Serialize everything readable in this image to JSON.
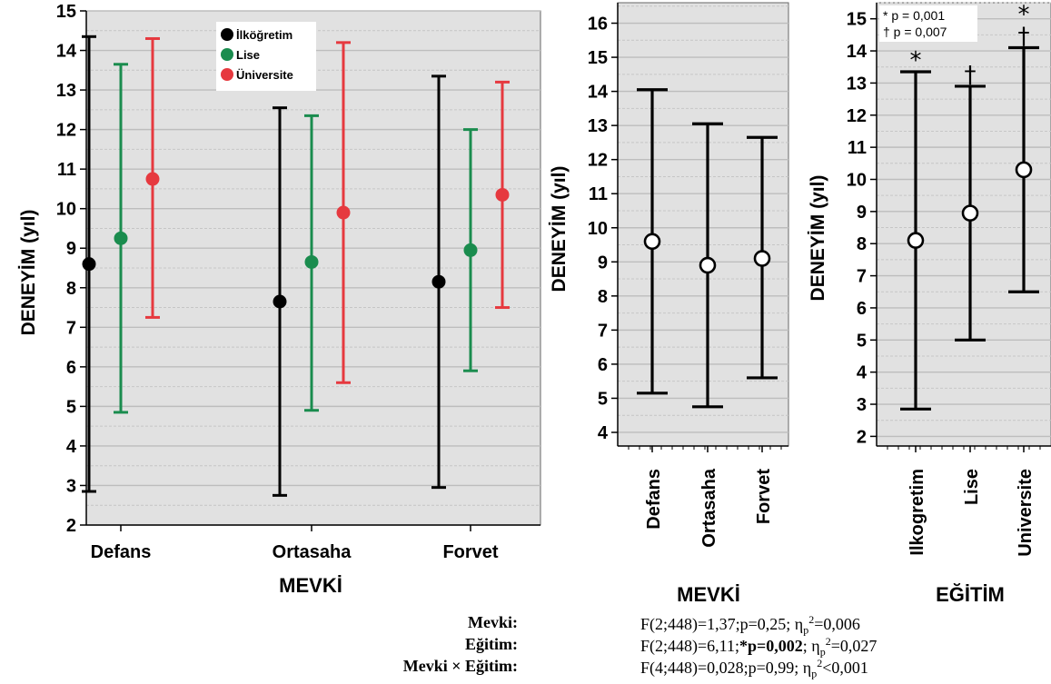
{
  "panels": [
    {
      "id": "mevki_egitim",
      "chart_data": {
        "type": "errorbar",
        "categories": [
          "Defans",
          "Ortasaha",
          "Forvet"
        ],
        "xlabel": "MEVKİ",
        "ylabel": "DENEYİM (yıl)",
        "ylim": [
          2,
          15
        ],
        "yticks": [
          2,
          3,
          4,
          5,
          6,
          7,
          8,
          9,
          10,
          11,
          12,
          13,
          14,
          15
        ],
        "legend_position": "top",
        "grid": true,
        "series": [
          {
            "name": "İlköğretim",
            "color": "#000000",
            "mean": [
              8.6,
              7.65,
              8.15
            ],
            "lower": [
              2.85,
              2.75,
              2.95
            ],
            "upper": [
              14.35,
              12.55,
              13.35
            ]
          },
          {
            "name": "Lise",
            "color": "#1a8c4e",
            "mean": [
              9.25,
              8.65,
              8.95
            ],
            "lower": [
              4.85,
              4.9,
              5.9
            ],
            "upper": [
              13.65,
              12.35,
              12.0
            ]
          },
          {
            "name": "Üniversite",
            "color": "#e6393f",
            "mean": [
              10.75,
              9.9,
              10.35
            ],
            "lower": [
              7.25,
              5.6,
              7.5
            ],
            "upper": [
              14.3,
              14.2,
              13.2
            ]
          }
        ]
      }
    },
    {
      "id": "mevki",
      "chart_data": {
        "type": "errorbar",
        "categories": [
          "Defans",
          "Ortasaha",
          "Forvet"
        ],
        "xlabel": "MEVKİ",
        "ylabel": "DENEYİM (yıl)",
        "ylim": [
          4,
          16
        ],
        "yticks": [
          4,
          5,
          6,
          7,
          8,
          9,
          10,
          11,
          12,
          13,
          14,
          15,
          16
        ],
        "grid": true,
        "series": [
          {
            "color": "#000000",
            "mean": [
              9.6,
              8.9,
              9.1
            ],
            "lower": [
              5.15,
              4.75,
              5.6
            ],
            "upper": [
              14.05,
              13.05,
              12.65
            ]
          }
        ]
      }
    },
    {
      "id": "egitim",
      "chart_data": {
        "type": "errorbar",
        "categories": [
          "Ilkogretim",
          "Lise",
          "Universite"
        ],
        "xlabel": "EĞİTİM",
        "ylabel": "DENEYİM (yıl)",
        "ylim": [
          2,
          15
        ],
        "yticks": [
          2,
          3,
          4,
          5,
          6,
          7,
          8,
          9,
          10,
          11,
          12,
          13,
          14,
          15
        ],
        "grid": true,
        "series": [
          {
            "color": "#000000",
            "mean": [
              8.1,
              8.95,
              10.3
            ],
            "lower": [
              2.85,
              5.0,
              6.5
            ],
            "upper": [
              13.35,
              12.9,
              14.1
            ]
          }
        ],
        "significance_markers": [
          [
            "*"
          ],
          [
            "†"
          ],
          [
            "*",
            "†"
          ]
        ],
        "annotations": [
          "* p = 0,001",
          "† p = 0,007"
        ]
      }
    }
  ],
  "stats": [
    {
      "label": "Mevki:",
      "parts": [
        {
          "t": "F(2;448)=1,37;p=0,25; η"
        },
        {
          "sub": "p"
        },
        {
          "sup": "2"
        },
        {
          "t": "=0,006"
        }
      ]
    },
    {
      "label": "Eğitim:",
      "parts": [
        {
          "t": "F(2;448)=6,11;"
        },
        {
          "b": "*p=0,002"
        },
        {
          "t": "; η"
        },
        {
          "sub": "p"
        },
        {
          "sup": "2"
        },
        {
          "t": "=0,027"
        }
      ]
    },
    {
      "label": "Mevki × Eğitim:",
      "parts": [
        {
          "t": "F(4;448)=0,028;p=0,99; η"
        },
        {
          "sub": "p"
        },
        {
          "sup": "2"
        },
        {
          "t": "<0,001"
        }
      ]
    }
  ]
}
